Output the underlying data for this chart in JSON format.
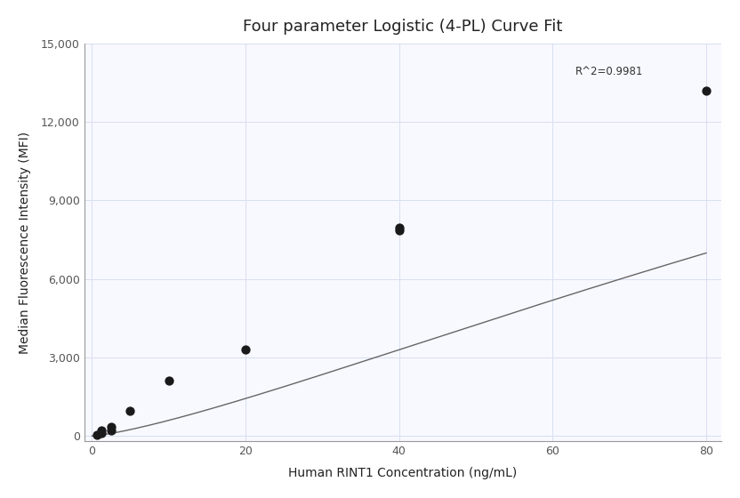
{
  "title": "Four parameter Logistic (4-PL) Curve Fit",
  "xlabel": "Human RINT1 Concentration (ng/mL)",
  "ylabel": "Median Fluorescence Intensity (MFI)",
  "scatter_x": [
    0.625,
    1.25,
    1.25,
    2.5,
    2.5,
    5.0,
    10.0,
    20.0,
    40.0,
    40.0,
    80.0
  ],
  "scatter_y": [
    60,
    120,
    200,
    230,
    350,
    950,
    2100,
    3300,
    7850,
    7950,
    13200
  ],
  "dot_color": "#1a1a1a",
  "dot_size": 55,
  "line_color": "#666666",
  "r_squared_text": "R^2=0.9981",
  "r_squared_x": 63,
  "r_squared_y": 13700,
  "xlim": [
    -1,
    82
  ],
  "ylim": [
    -200,
    15000
  ],
  "xticks": [
    0,
    20,
    40,
    60,
    80
  ],
  "yticks": [
    0,
    3000,
    6000,
    9000,
    12000,
    15000
  ],
  "ytick_labels": [
    "0",
    "3,000",
    "6,000",
    "9,000",
    "12,000",
    "15,000"
  ],
  "grid_color": "#d8dff0",
  "plot_bg_color": "#f8f9ff",
  "fig_bg_color": "#ffffff",
  "title_fontsize": 13,
  "axis_label_fontsize": 10,
  "tick_fontsize": 9
}
